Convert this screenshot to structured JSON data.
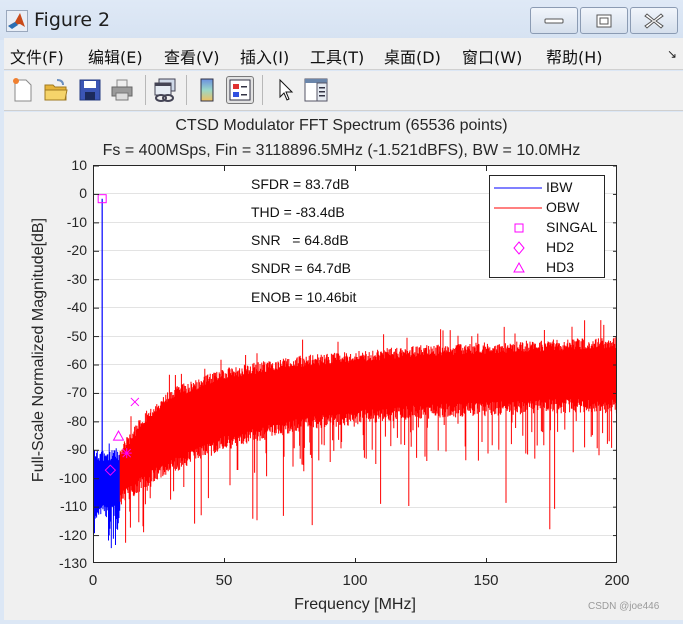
{
  "window": {
    "title": "Figure 2",
    "controls": [
      "minimize",
      "maximize",
      "close"
    ]
  },
  "menubar": {
    "items": [
      {
        "label": "文件(F)"
      },
      {
        "label": "编辑(E)"
      },
      {
        "label": "查看(V)"
      },
      {
        "label": "插入(I)"
      },
      {
        "label": "工具(T)"
      },
      {
        "label": "桌面(D)"
      },
      {
        "label": "窗口(W)"
      },
      {
        "label": "帮助(H)"
      }
    ],
    "expand_glyph": "↘"
  },
  "toolbar": {
    "buttons": [
      {
        "name": "new-figure",
        "icon": "new-file-icon"
      },
      {
        "name": "open-file",
        "icon": "folder-open-icon"
      },
      {
        "name": "save",
        "icon": "save-icon"
      },
      {
        "name": "print",
        "icon": "print-icon"
      },
      {
        "name": "link-plot",
        "icon": "link-figure-icon"
      },
      {
        "name": "insert-colorbar",
        "icon": "colorbar-icon"
      },
      {
        "name": "insert-legend",
        "icon": "legend-icon",
        "pressed": true
      },
      {
        "name": "edit-plot",
        "icon": "pointer-arrow-icon"
      },
      {
        "name": "property-inspector",
        "icon": "property-panel-icon"
      }
    ]
  },
  "colors": {
    "ibw": "#0000ff",
    "obw": "#ff0000",
    "markers": "#ff00ff",
    "grid": "#e3e3e3",
    "axes": "#262626"
  },
  "metrics": [
    {
      "text": "SFDR = 83.7dB"
    },
    {
      "text": "THD = -83.4dB"
    },
    {
      "text": "SNR   = 64.8dB"
    },
    {
      "text": "SNDR = 64.7dB"
    },
    {
      "text": "ENOB = 10.46bit"
    }
  ],
  "watermark": "CSDN @joe446",
  "chart_data": {
    "type": "line",
    "title": "CTSD Modulator FFT Spectrum (65536 points)",
    "subtitle": "Fs = 400MSps,  Fin = 3118896.5MHz (-1.521dBFS),  BW = 10.0MHz",
    "xlabel": "Frequency [MHz]",
    "ylabel": "Full-Scale Normalized Magnitude[dB]",
    "xlim": [
      0,
      200
    ],
    "ylim": [
      -130,
      10
    ],
    "xticks": [
      0,
      50,
      100,
      150,
      200
    ],
    "yticks": [
      10,
      0,
      -10,
      -20,
      -30,
      -40,
      -50,
      -60,
      -70,
      -80,
      -90,
      -100,
      -110,
      -120,
      -130
    ],
    "grid": "horizontal",
    "legend_position": "northeast",
    "legend": [
      "IBW",
      "OBW",
      "SINGAL",
      "HD2",
      "HD3"
    ],
    "series": [
      {
        "name": "IBW",
        "color": "#0000ff",
        "x_range": [
          0,
          10
        ],
        "envelope_top_db": -90,
        "envelope_bottom_db": -125,
        "signal_tone": {
          "x": 3.12,
          "y": -1.5
        }
      },
      {
        "name": "OBW",
        "color": "#ff0000",
        "x_range": [
          10,
          200
        ],
        "envelope_x": [
          10,
          20,
          30,
          50,
          75,
          100,
          125,
          150,
          175,
          200
        ],
        "envelope_top_db": [
          -88,
          -76,
          -68,
          -61,
          -57,
          -55,
          -53,
          -52,
          -51,
          -50
        ],
        "envelope_bottom_db": [
          -105,
          -98,
          -93,
          -85,
          -79,
          -76,
          -74,
          -73,
          -72,
          -72
        ],
        "spur_min_db": -118
      }
    ],
    "markers": [
      {
        "name": "SINGAL",
        "symbol": "square",
        "x": 3.12,
        "y": -1.5
      },
      {
        "name": "HD2",
        "symbol": "diamond",
        "x": 6.24,
        "y": -97
      },
      {
        "name": "HD3",
        "symbol": "triangle",
        "x": 9.36,
        "y": -85
      },
      {
        "name": "HD4",
        "symbol": "asterisk",
        "x": 12.48,
        "y": -91
      },
      {
        "name": "HD5",
        "symbol": "x",
        "x": 15.6,
        "y": -73
      }
    ]
  }
}
